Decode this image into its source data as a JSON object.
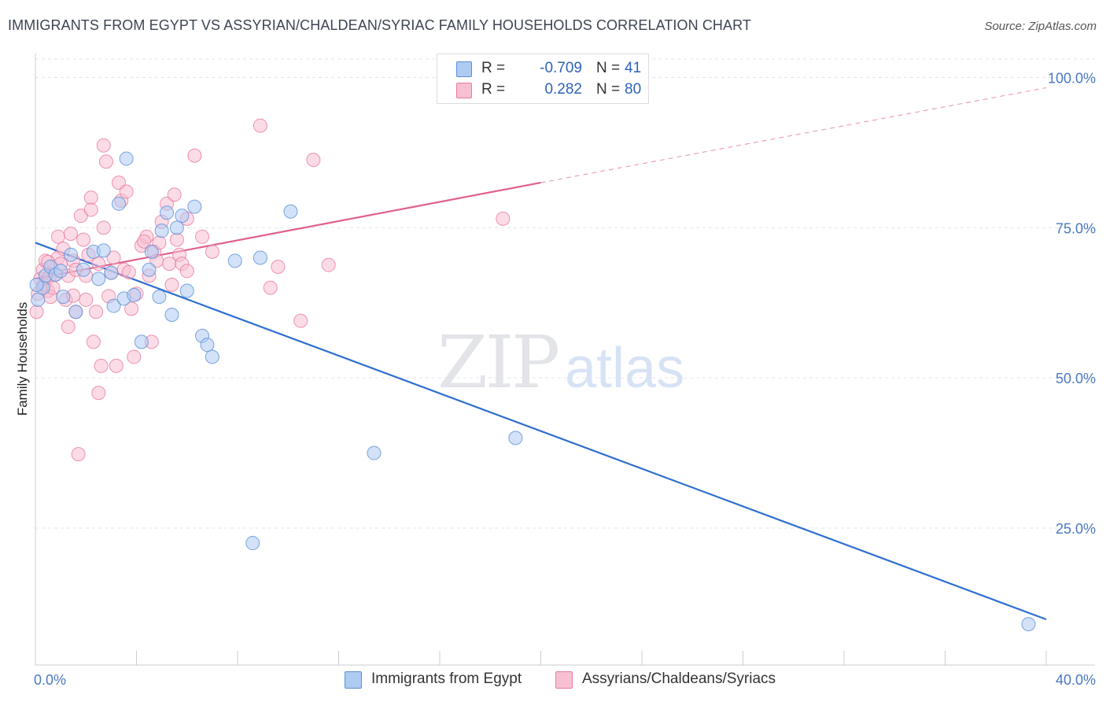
{
  "header": {
    "title": "IMMIGRANTS FROM EGYPT VS ASSYRIAN/CHALDEAN/SYRIAC FAMILY HOUSEHOLDS CORRELATION CHART",
    "source": "Source: ZipAtlas.com"
  },
  "watermark": {
    "zip": "ZIP",
    "atlas": "atlas"
  },
  "legend_top": {
    "rows": [
      {
        "r_label": "R =",
        "r_value": "-0.709",
        "n_label": "N =",
        "n_value": "41"
      },
      {
        "r_label": "R =",
        "r_value": "0.282",
        "n_label": "N =",
        "n_value": "80"
      }
    ]
  },
  "legend_bottom": {
    "items": [
      {
        "label": "Immigrants from Egypt"
      },
      {
        "label": "Assyrians/Chaldeans/Syriacs"
      }
    ]
  },
  "colors": {
    "blue_fill": "#aecbf2",
    "blue_stroke": "#5b8fd6",
    "blue_line": "#2f6fcf",
    "pink_fill": "#f7c0d2",
    "pink_stroke": "#e8799e",
    "pink_line": "#e0608c",
    "grid": "#e3e5ea",
    "axis_text": "#4a78c2"
  },
  "chart_data": {
    "type": "scatter",
    "title": "IMMIGRANTS FROM EGYPT VS ASSYRIAN/CHALDEAN/SYRIAC FAMILY HOUSEHOLDS CORRELATION CHART",
    "xlabel": "",
    "ylabel": "Family Households",
    "xlim": [
      0,
      40
    ],
    "ylim": [
      2.2,
      104
    ],
    "x_tick_labels": [
      {
        "value": 0,
        "label": "0.0%"
      },
      {
        "value": 40,
        "label": "40.0%"
      }
    ],
    "y_tick_labels": [
      {
        "value": 25,
        "label": "25.0%"
      },
      {
        "value": 50,
        "label": "50.0%"
      },
      {
        "value": 75,
        "label": "75.0%"
      },
      {
        "value": 100,
        "label": "100.0%"
      }
    ],
    "grid": true,
    "series": [
      {
        "name": "Immigrants from Egypt",
        "color": "blue",
        "r": -0.709,
        "n": 41,
        "trend": {
          "x0": 0,
          "y0": 72.5,
          "x1": 40,
          "y1": 9.8,
          "dashed_after": null
        },
        "points": [
          [
            0.1,
            63.0
          ],
          [
            0.3,
            65.0
          ],
          [
            0.4,
            67.0
          ],
          [
            0.6,
            68.5
          ],
          [
            0.8,
            67.2
          ],
          [
            1.0,
            67.8
          ],
          [
            1.1,
            63.5
          ],
          [
            1.4,
            70.5
          ],
          [
            1.6,
            61.0
          ],
          [
            1.9,
            68.0
          ],
          [
            2.3,
            71.0
          ],
          [
            2.5,
            66.5
          ],
          [
            2.7,
            71.2
          ],
          [
            3.0,
            67.5
          ],
          [
            3.1,
            62.0
          ],
          [
            3.3,
            79.0
          ],
          [
            3.5,
            63.2
          ],
          [
            3.6,
            86.5
          ],
          [
            3.9,
            63.8
          ],
          [
            4.2,
            56.0
          ],
          [
            4.5,
            68.0
          ],
          [
            4.6,
            71.0
          ],
          [
            4.9,
            63.5
          ],
          [
            5.0,
            74.5
          ],
          [
            5.2,
            77.5
          ],
          [
            5.4,
            60.5
          ],
          [
            5.6,
            75.0
          ],
          [
            5.8,
            77.0
          ],
          [
            6.0,
            64.5
          ],
          [
            6.3,
            78.5
          ],
          [
            6.6,
            57.0
          ],
          [
            6.8,
            55.5
          ],
          [
            7.0,
            53.5
          ],
          [
            7.9,
            69.5
          ],
          [
            8.6,
            22.5
          ],
          [
            8.9,
            70.0
          ],
          [
            10.1,
            77.7
          ],
          [
            13.4,
            37.5
          ],
          [
            19.0,
            40.0
          ],
          [
            39.3,
            9.0
          ],
          [
            0.05,
            65.5
          ]
        ]
      },
      {
        "name": "Assyrians/Chaldeans/Syriacs",
        "color": "pink",
        "r": 0.282,
        "n": 80,
        "trend": {
          "x0": 0,
          "y0": 66.5,
          "x1": 20,
          "y1": 82.5,
          "x2": 40,
          "y2": 98.3,
          "dashed_after": 20
        },
        "points": [
          [
            0.05,
            61.0
          ],
          [
            0.1,
            64.0
          ],
          [
            0.2,
            66.5
          ],
          [
            0.3,
            68.0
          ],
          [
            0.35,
            65.5
          ],
          [
            0.4,
            69.5
          ],
          [
            0.5,
            64.5
          ],
          [
            0.55,
            66.8
          ],
          [
            0.6,
            63.5
          ],
          [
            0.7,
            65.0
          ],
          [
            0.8,
            67.2
          ],
          [
            0.9,
            70.0
          ],
          [
            0.9,
            73.5
          ],
          [
            1.0,
            69.0
          ],
          [
            1.1,
            71.5
          ],
          [
            1.2,
            63.0
          ],
          [
            1.3,
            67.0
          ],
          [
            1.3,
            58.5
          ],
          [
            1.4,
            74.0
          ],
          [
            1.5,
            69.5
          ],
          [
            1.6,
            68.0
          ],
          [
            1.6,
            61.0
          ],
          [
            1.7,
            37.3
          ],
          [
            1.8,
            77.0
          ],
          [
            1.9,
            73.0
          ],
          [
            2.0,
            67.0
          ],
          [
            2.0,
            63.0
          ],
          [
            2.1,
            70.5
          ],
          [
            2.2,
            80.0
          ],
          [
            2.2,
            78.0
          ],
          [
            2.3,
            56.0
          ],
          [
            2.4,
            61.0
          ],
          [
            2.5,
            69.0
          ],
          [
            2.5,
            47.5
          ],
          [
            2.6,
            52.0
          ],
          [
            2.7,
            88.7
          ],
          [
            2.7,
            75.0
          ],
          [
            2.8,
            86.0
          ],
          [
            3.0,
            67.5
          ],
          [
            3.1,
            70.0
          ],
          [
            3.2,
            52.0
          ],
          [
            3.3,
            82.5
          ],
          [
            3.4,
            79.5
          ],
          [
            3.5,
            68.0
          ],
          [
            3.6,
            81.0
          ],
          [
            3.8,
            61.5
          ],
          [
            3.9,
            53.5
          ],
          [
            4.0,
            64.0
          ],
          [
            4.2,
            72.0
          ],
          [
            4.4,
            73.5
          ],
          [
            4.5,
            67.0
          ],
          [
            4.6,
            56.0
          ],
          [
            4.7,
            71.0
          ],
          [
            4.8,
            69.5
          ],
          [
            4.9,
            72.5
          ],
          [
            5.0,
            76.0
          ],
          [
            5.2,
            79.0
          ],
          [
            5.3,
            69.0
          ],
          [
            5.4,
            65.5
          ],
          [
            5.5,
            80.5
          ],
          [
            5.6,
            73.0
          ],
          [
            5.7,
            70.5
          ],
          [
            5.8,
            69.0
          ],
          [
            6.0,
            67.8
          ],
          [
            6.0,
            76.5
          ],
          [
            6.3,
            87.0
          ],
          [
            6.6,
            73.5
          ],
          [
            7.0,
            71.0
          ],
          [
            8.9,
            92.0
          ],
          [
            9.3,
            65.0
          ],
          [
            9.6,
            68.5
          ],
          [
            10.5,
            59.5
          ],
          [
            11.0,
            86.3
          ],
          [
            11.6,
            68.8
          ],
          [
            18.5,
            76.5
          ],
          [
            4.3,
            72.7
          ],
          [
            3.7,
            67.6
          ],
          [
            1.5,
            63.7
          ],
          [
            2.9,
            63.6
          ],
          [
            0.5,
            69.3
          ]
        ]
      }
    ]
  }
}
